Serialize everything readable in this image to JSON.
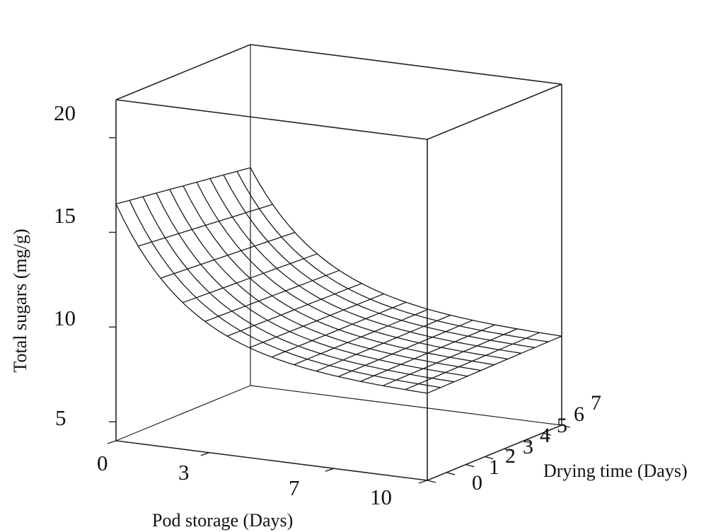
{
  "chart_data": {
    "type": "surface",
    "title": "",
    "xlabel": "Pod storage (Days)",
    "ylabel": "Drying time (Days)",
    "zlabel": "Total sugars (mg/g)",
    "x_ticks": [
      "0",
      "3",
      "7",
      "10"
    ],
    "y_ticks": [
      "0",
      "1",
      "2",
      "3",
      "4",
      "5",
      "6",
      "7"
    ],
    "z_ticks": [
      "5",
      "10",
      "15",
      "20"
    ],
    "xlim": [
      0,
      10
    ],
    "ylim": [
      0,
      7
    ],
    "zlim": [
      4,
      22
    ],
    "grid": false,
    "legend": "none",
    "surface_color": "#1a1a1a",
    "box_color": "#222222",
    "corner_values": {
      "x0_y0": 16.5,
      "x10_y0": 8.6,
      "x0_y7": 15.5,
      "x10_y7": 8.7
    }
  }
}
